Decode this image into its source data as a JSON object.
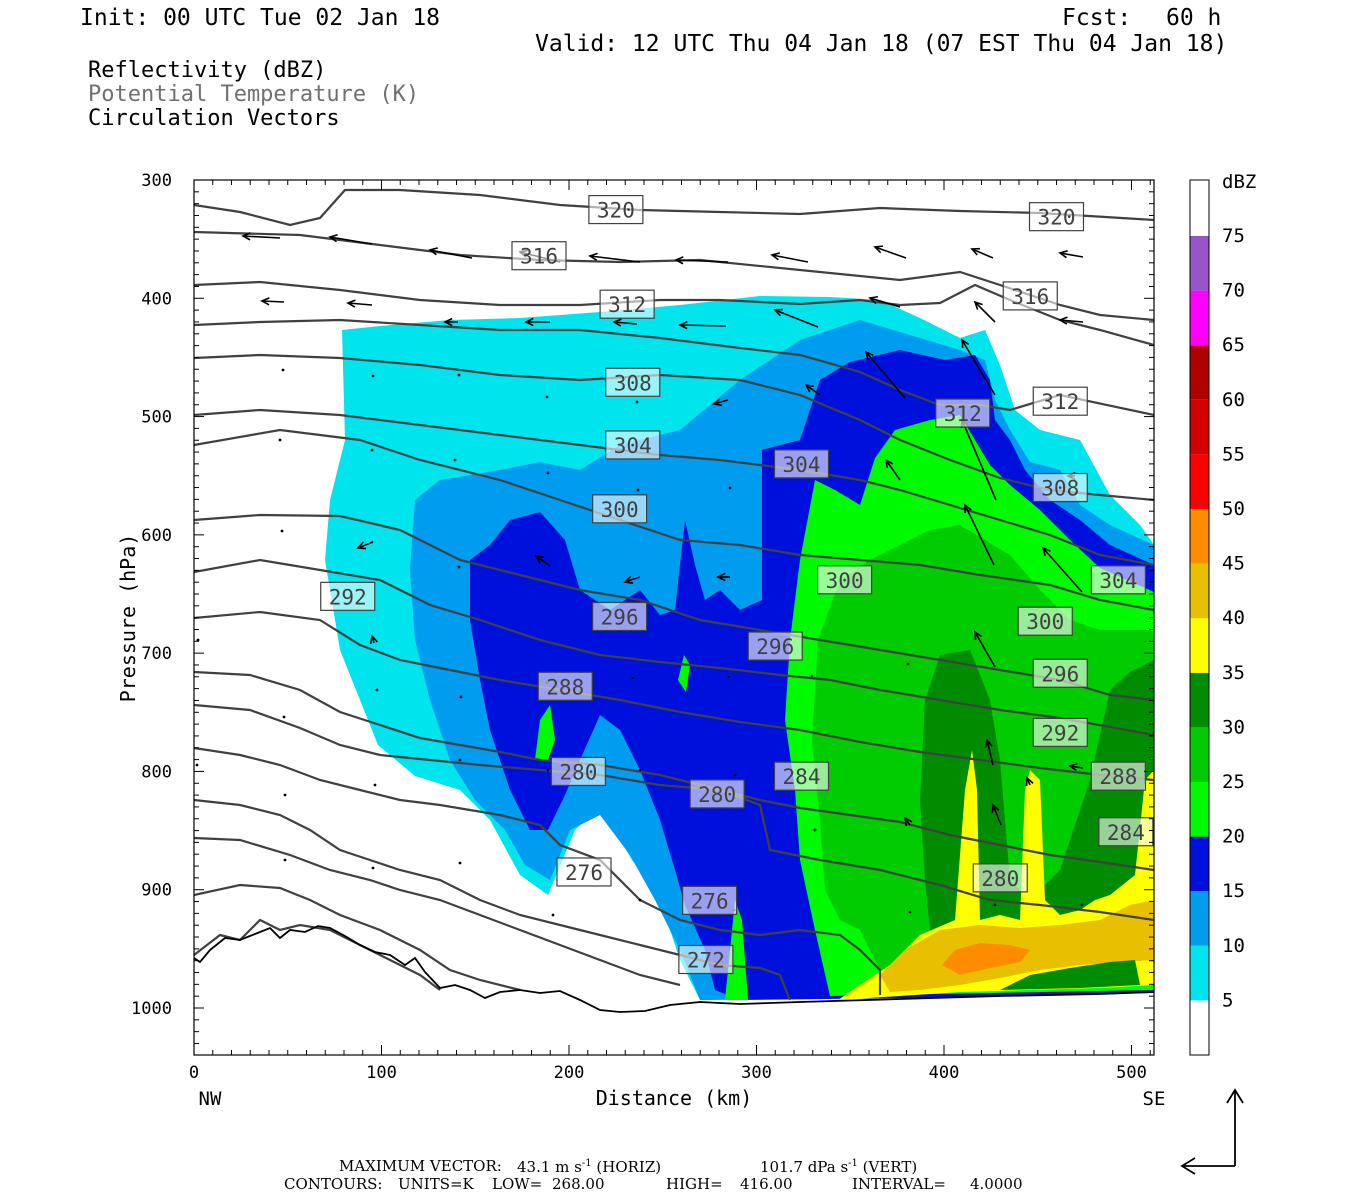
{
  "header": {
    "init": "Init: 00 UTC Tue 02 Jan 18",
    "fcst_label": "Fcst:",
    "fcst_value": "60 h",
    "valid": "Valid: 12 UTC Thu 04 Jan 18 (07 EST Thu 04 Jan 18)"
  },
  "legend": {
    "reflectivity": "Reflectivity (dBZ)",
    "theta": "Potential Temperature (K)",
    "vectors": "Circulation Vectors"
  },
  "chart_data": {
    "type": "heatmap",
    "xlabel": "Distance (km)",
    "ylabel": "Pressure (hPa)",
    "xlim": [
      0,
      512
    ],
    "ylim": [
      1040,
      300
    ],
    "x_ticks": [
      "0",
      "100",
      "200",
      "300",
      "400",
      "500"
    ],
    "y_ticks": [
      "300",
      "400",
      "500",
      "600",
      "700",
      "800",
      "900",
      "1000"
    ],
    "x_end_labels": {
      "left": "NW",
      "right": "SE"
    },
    "colorbar": {
      "title": "dBZ",
      "levels": [
        "5",
        "10",
        "15",
        "20",
        "25",
        "30",
        "35",
        "40",
        "45",
        "50",
        "55",
        "60",
        "65",
        "70",
        "75"
      ],
      "colors": [
        "#ffffff",
        "#00e4ee",
        "#009cf0",
        "#0010dc",
        "#00fa00",
        "#00cc00",
        "#008c00",
        "#ffff00",
        "#e8c000",
        "#ff8c00",
        "#ff0000",
        "#d40000",
        "#b00000",
        "#ff00ff",
        "#9855c8"
      ]
    },
    "theta_labels": [
      {
        "v": "320",
        "x": 225,
        "p": 325,
        "boxed": true
      },
      {
        "v": "320",
        "x": 460,
        "p": 331,
        "boxed": true
      },
      {
        "v": "316",
        "x": 184,
        "p": 364,
        "boxed": true
      },
      {
        "v": "316",
        "x": 446,
        "p": 398,
        "boxed": true
      },
      {
        "v": "312",
        "x": 231,
        "p": 405,
        "boxed": true
      },
      {
        "v": "312",
        "x": 462,
        "p": 487,
        "boxed": true
      },
      {
        "v": "312",
        "x": 410,
        "p": 497,
        "boxed": true
      },
      {
        "v": "308",
        "x": 234,
        "p": 471,
        "boxed": true
      },
      {
        "v": "308",
        "x": 462,
        "p": 560,
        "boxed": true
      },
      {
        "v": "304",
        "x": 234,
        "p": 524,
        "boxed": true
      },
      {
        "v": "304",
        "x": 324,
        "p": 540,
        "boxed": true
      },
      {
        "v": "304",
        "x": 493,
        "p": 638,
        "boxed": true
      },
      {
        "v": "300",
        "x": 227,
        "p": 578,
        "boxed": true
      },
      {
        "v": "300",
        "x": 347,
        "p": 638,
        "boxed": true
      },
      {
        "v": "300",
        "x": 454,
        "p": 673,
        "boxed": true
      },
      {
        "v": "296",
        "x": 227,
        "p": 669,
        "boxed": true
      },
      {
        "v": "296",
        "x": 310,
        "p": 694,
        "boxed": true
      },
      {
        "v": "296",
        "x": 462,
        "p": 717,
        "boxed": true
      },
      {
        "v": "292",
        "x": 82,
        "p": 652,
        "boxed": true
      },
      {
        "v": "292",
        "x": 462,
        "p": 767,
        "boxed": true
      },
      {
        "v": "288",
        "x": 198,
        "p": 728,
        "boxed": true
      },
      {
        "v": "288",
        "x": 493,
        "p": 804,
        "boxed": true
      },
      {
        "v": "284",
        "x": 324,
        "p": 804,
        "boxed": true
      },
      {
        "v": "284",
        "x": 497,
        "p": 851,
        "boxed": true
      },
      {
        "v": "280",
        "x": 205,
        "p": 800,
        "boxed": true
      },
      {
        "v": "280",
        "x": 279,
        "p": 819,
        "boxed": true
      },
      {
        "v": "280",
        "x": 430,
        "p": 890,
        "boxed": true
      },
      {
        "v": "276",
        "x": 208,
        "p": 885,
        "boxed": true
      },
      {
        "v": "276",
        "x": 275,
        "p": 909,
        "boxed": true
      },
      {
        "v": "272",
        "x": 273,
        "p": 959,
        "boxed": true
      }
    ]
  },
  "footer": {
    "max_vector_label": "MAXIMUM VECTOR:",
    "horiz_value": "43.1 m s",
    "horiz_unit": "(HORIZ)",
    "vert_value": "101.7 dPa s",
    "vert_unit": "(VERT)",
    "exp": "-1",
    "contours": "CONTOURS:",
    "units": "UNITS=K",
    "low_label": "LOW=",
    "low_value": "268.00",
    "high_label": "HIGH=",
    "high_value": "416.00",
    "interval_label": "INTERVAL=",
    "interval_value": "4.0000"
  }
}
